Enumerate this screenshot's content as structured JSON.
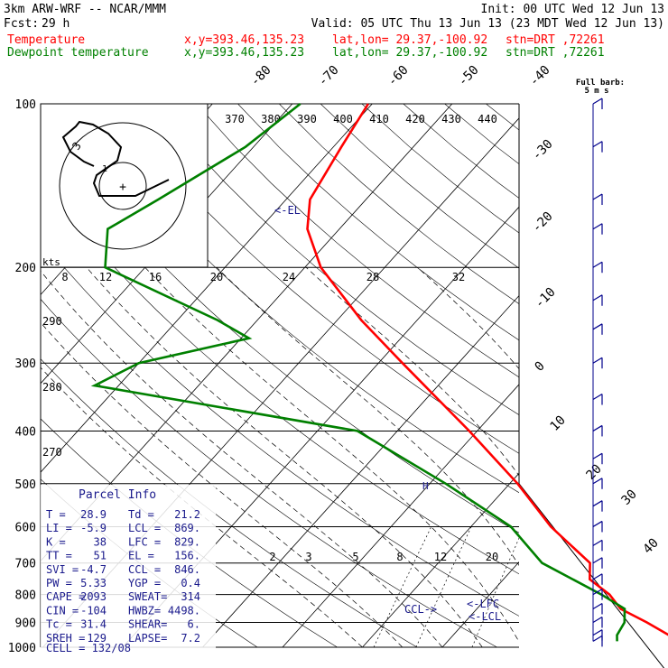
{
  "header": {
    "model": "3km ARW-WRF -- NCAR/MMM",
    "init": "Init: 00 UTC Wed 12 Jun 13",
    "fcst_label": "Fcst:",
    "fcst_value": "29 h",
    "valid": "Valid: 05 UTC Thu 13 Jun 13 (23 MDT Wed 12 Jun 13)",
    "temp_label": "Temperature",
    "dew_label": "Dewpoint temperature",
    "xy": "x,y=393.46,135.23",
    "latlon": "lat,lon= 29.37,-100.92",
    "stn": "stn=DRT ,72261"
  },
  "colors": {
    "temperature": "#ff0000",
    "dewpoint": "#008000",
    "wind": "#00008b",
    "annot": "#1a1a8c"
  },
  "barb_legend": {
    "line1": "Full barb:",
    "line2": "5 m s"
  },
  "el_label": "<-EL",
  "lfc_label": "<-LFC",
  "lcl_label": "<-LCL",
  "ccl_label": "CCL->",
  "h_marker": "H",
  "hodograph": {
    "units": "kts",
    "ring_labels": [
      "1",
      "3"
    ],
    "center": "+"
  },
  "theta_labels": [
    "370",
    "380",
    "390",
    "400",
    "410",
    "420",
    "430",
    "440"
  ],
  "theta_side_labels": [
    "290",
    "280",
    "270"
  ],
  "speed_labels": [
    "8",
    "12",
    "16",
    "20",
    "24",
    "28",
    "32"
  ],
  "mixing_labels": [
    "2",
    "3",
    "5",
    "8",
    "12",
    "20"
  ],
  "parcel_info": {
    "title": "Parcel Info",
    "rows": [
      [
        "T   =",
        "28.9",
        "Td  =",
        "21.2"
      ],
      [
        "LI  =",
        "-5.9",
        "LCL =",
        "869."
      ],
      [
        "K   =",
        "38",
        "LFC =",
        "829."
      ],
      [
        "TT  =",
        "51",
        "EL  =",
        "156."
      ],
      [
        "SVI =",
        "-4.7",
        "CCL =",
        "846."
      ],
      [
        "PW  =",
        "5.33",
        "YGP =",
        "0.4"
      ],
      [
        "CAPE =",
        "2093",
        "SWEAT=",
        "314"
      ],
      [
        "CIN =",
        "-104",
        "HWBZ=",
        "4498."
      ],
      [
        "Tc  =",
        "31.4",
        "SHEAR=",
        "6."
      ],
      [
        "SREH =",
        "129",
        "LAPSE=",
        "7.2"
      ]
    ],
    "cell": "CELL = 132/08"
  },
  "chart_data": {
    "type": "skew-t log-p sounding",
    "y_axis": {
      "label": "pressure (hPa)",
      "log_scale": true,
      "ticks": [
        100,
        200,
        300,
        400,
        500,
        600,
        700,
        800,
        900,
        1000
      ]
    },
    "isotherm_labels": [
      -80,
      -70,
      -60,
      -50,
      -40,
      -30,
      -20,
      -10,
      0,
      10,
      20,
      30,
      40
    ],
    "series": [
      {
        "name": "Temperature",
        "points": [
          [
            100,
            -70.5
          ],
          [
            120,
            -69
          ],
          [
            150,
            -67
          ],
          [
            170,
            -64
          ],
          [
            200,
            -58
          ],
          [
            250,
            -47
          ],
          [
            300,
            -37
          ],
          [
            400,
            -21
          ],
          [
            500,
            -9
          ],
          [
            600,
            0
          ],
          [
            700,
            9
          ],
          [
            750,
            10.8
          ],
          [
            800,
            15
          ],
          [
            850,
            18
          ],
          [
            900,
            22.8
          ],
          [
            950,
            27
          ],
          [
            975,
            28.9
          ]
        ]
      },
      {
        "name": "Dewpoint temperature",
        "points": [
          [
            100,
            -79
          ],
          [
            120,
            -81
          ],
          [
            150,
            -86
          ],
          [
            170,
            -89
          ],
          [
            200,
            -85
          ],
          [
            250,
            -65
          ],
          [
            270,
            -59
          ],
          [
            300,
            -70
          ],
          [
            330,
            -73
          ],
          [
            400,
            -35
          ],
          [
            500,
            -18
          ],
          [
            600,
            -5
          ],
          [
            700,
            3
          ],
          [
            800,
            14
          ],
          [
            850,
            18.5
          ],
          [
            900,
            20
          ],
          [
            950,
            20.5
          ],
          [
            975,
            21.2
          ]
        ]
      }
    ],
    "wind_barbs_pressure_hpa": [
      100,
      120,
      150,
      170,
      200,
      230,
      260,
      300,
      350,
      400,
      450,
      500,
      550,
      600,
      650,
      700,
      750,
      800,
      850,
      900,
      950,
      975
    ]
  }
}
